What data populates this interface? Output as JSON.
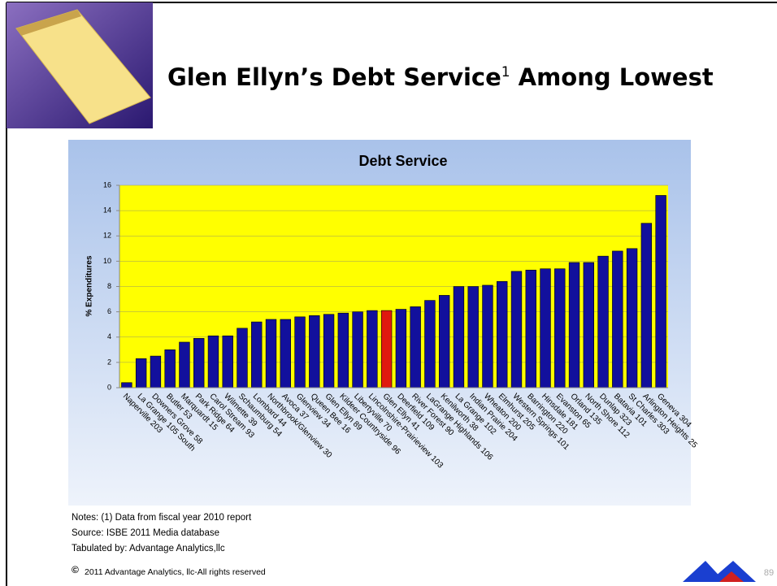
{
  "slide": {
    "heading": "Glen Ellyn’s Debt Service",
    "heading_note": "1",
    "heading_end": "Among Lowest",
    "notes": [
      "Notes: (1) Data from fiscal year 2010 report",
      "Source: ISBE 2011 Media database",
      "Tabulated by: Advantage Analytics,llc"
    ],
    "copyright_symbol": "©",
    "copyright": "2011 Advantage Analytics, llc-All rights reserved",
    "page_number": "89"
  },
  "chart_data": {
    "type": "bar",
    "title": "Debt Service",
    "y_label": "% Expenditures",
    "categories": [
      "Naperville 203",
      "La Grange 105 South",
      "Downers Grove 58",
      "Butler 53",
      "Marquardt 15",
      "Park Ridge 64",
      "Carol Stream 93",
      "Wilmette 39",
      "Schaumburg 54",
      "Lombard 44",
      "Northbrook/Glenview 30",
      "Avoca 37",
      "Glenview 34",
      "Queen Bee 16",
      "Glen Ellyn 89",
      "Kildeer Countryside 96",
      "Libertyville 70",
      "Lincolnshire-Prairieview 103",
      "Glen Ellyn 41",
      "Deerfield 109",
      "River Forest 90",
      "LaGrange Highlands 106",
      "Kenilworth 38",
      "La Grange 102",
      "Indian Prairie 204",
      "Wheaton 200",
      "Elmhurst 205",
      "Western Springs 101",
      "Barrington 220",
      "Hinsdale 181",
      "Evanston 65",
      "Orland 135",
      "North Shore 112",
      "Dunlap 323",
      "Batavia 101",
      "St Charles 303",
      "Arlington Heights 25",
      "Geneva 304"
    ],
    "values": [
      0.4,
      2.3,
      2.5,
      3.0,
      3.6,
      3.9,
      4.1,
      4.1,
      4.7,
      5.2,
      5.4,
      5.4,
      5.6,
      5.7,
      5.8,
      5.9,
      6.0,
      6.1,
      6.1,
      6.2,
      6.4,
      6.9,
      7.3,
      8.0,
      8.0,
      8.1,
      8.4,
      9.2,
      9.3,
      9.4,
      9.4,
      9.9,
      9.9,
      10.4,
      10.8,
      11.0,
      13.0,
      15.2
    ],
    "color": "#12109c",
    "highlight_color": "#e0190f",
    "highlight_category": "Glen Ellyn 41",
    "ylim": [
      0,
      16
    ],
    "yticks": [
      0,
      2,
      4,
      6,
      8,
      10,
      12,
      14,
      16
    ],
    "grid": true
  }
}
